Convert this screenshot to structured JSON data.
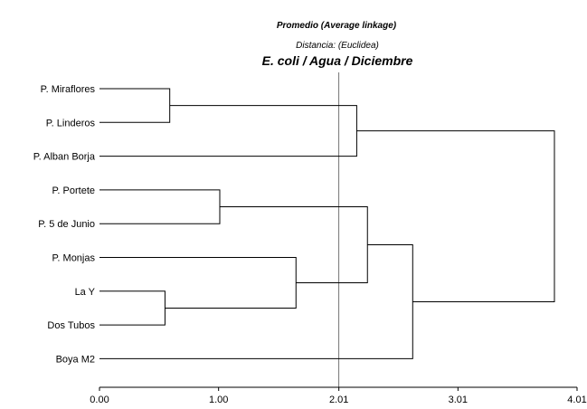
{
  "chart_data": {
    "type": "dendrogram",
    "title": "Promedio (Average linkage)",
    "subtitle": "Distancia: (Euclidea)",
    "heading": "E. coli / Agua / Diciembre",
    "xlim": [
      0,
      4.01
    ],
    "ticks": [
      {
        "value": 0,
        "label": "0.00"
      },
      {
        "value": 1,
        "label": "1.00"
      },
      {
        "value": 2.01,
        "label": "2.01"
      },
      {
        "value": 3.01,
        "label": "3.01"
      },
      {
        "value": 4.01,
        "label": "4.01"
      }
    ],
    "reference_line": 2.01,
    "leaves": [
      "P. Miraflores",
      "P. Linderos",
      "P. Alban Borja",
      "P. Portete",
      "P. 5 de Junio",
      "P. Monjas",
      "La Y",
      "Dos Tubos",
      "Boya M2"
    ],
    "merges": [
      {
        "id": "c1",
        "children": [
          "P. Miraflores",
          "P. Linderos"
        ],
        "height": 0.59
      },
      {
        "id": "c2",
        "children": [
          "c1",
          "P. Alban Borja"
        ],
        "height": 2.16
      },
      {
        "id": "c3",
        "children": [
          "P. Portete",
          "P. 5 de Junio"
        ],
        "height": 1.01
      },
      {
        "id": "c4",
        "children": [
          "La Y",
          "Dos Tubos"
        ],
        "height": 0.55
      },
      {
        "id": "c5",
        "children": [
          "P. Monjas",
          "c4"
        ],
        "height": 1.65
      },
      {
        "id": "c6",
        "children": [
          "c3",
          "c5"
        ],
        "height": 2.25
      },
      {
        "id": "c7",
        "children": [
          "c6",
          "Boya M2"
        ],
        "height": 2.63
      },
      {
        "id": "c8",
        "children": [
          "c2",
          "c7"
        ],
        "height": 3.82
      }
    ]
  }
}
